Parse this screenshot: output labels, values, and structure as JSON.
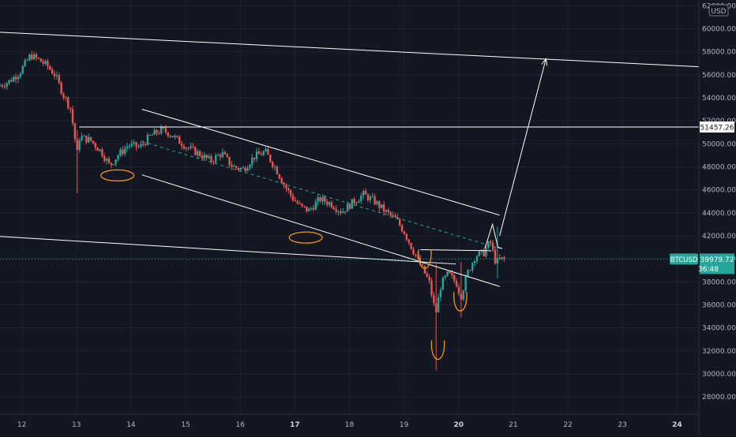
{
  "chart_data": {
    "type": "candlestick",
    "symbol": "BTCUSD",
    "currency": "USD",
    "colors": {
      "background": "#131722",
      "up": "#26a69a",
      "down": "#ef5350",
      "drawing": "#ffffff",
      "highlight": "#f7931a",
      "badge": "#26a69a",
      "grid": "#1e222d"
    },
    "y_axis": {
      "range": [
        26500,
        62500
      ],
      "ticks": [
        "62000.00",
        "60000.00",
        "58000.00",
        "56000.00",
        "54000.00",
        "52000.00",
        "50000.00",
        "48000.00",
        "46000.00",
        "44000.00",
        "42000.00",
        "40000.00",
        "38000.00",
        "36000.00",
        "34000.00",
        "32000.00",
        "30000.00",
        "28000.00"
      ],
      "tick_values": [
        62000,
        60000,
        58000,
        56000,
        54000,
        52000,
        50000,
        48000,
        46000,
        44000,
        42000,
        40000,
        38000,
        36000,
        34000,
        32000,
        30000,
        28000
      ]
    },
    "x_axis": {
      "range": [
        11.6,
        24.4
      ],
      "tick_labels": [
        "12",
        "13",
        "14",
        "15",
        "16",
        "17",
        "18",
        "19",
        "20",
        "21",
        "22",
        "23",
        "24"
      ],
      "tick_values": [
        12,
        13,
        14,
        15,
        16,
        17,
        18,
        19,
        20,
        21,
        22,
        23,
        24
      ],
      "bold_labels": [
        "17",
        "20",
        "24"
      ]
    },
    "price_levels": [
      {
        "label": "51457.26",
        "value": 51457.26,
        "style": "white"
      }
    ],
    "last_price": {
      "label": "BTCUSD",
      "value_label": "39979.72",
      "countdown": "36:48",
      "value": 39979.72
    },
    "price_path": [
      [
        11.6,
        55000
      ],
      [
        11.8,
        55400
      ],
      [
        12.0,
        56200
      ],
      [
        12.2,
        57700
      ],
      [
        12.35,
        57300
      ],
      [
        12.5,
        56800
      ],
      [
        12.65,
        56000
      ],
      [
        12.8,
        54300
      ],
      [
        12.93,
        53100
      ],
      [
        13.0,
        51000
      ],
      [
        13.05,
        49000
      ],
      [
        13.1,
        50600
      ],
      [
        13.3,
        50300
      ],
      [
        13.5,
        49300
      ],
      [
        13.65,
        48100
      ],
      [
        13.8,
        49000
      ],
      [
        14.0,
        49900
      ],
      [
        14.2,
        49700
      ],
      [
        14.4,
        50700
      ],
      [
        14.6,
        51200
      ],
      [
        14.75,
        50900
      ],
      [
        14.9,
        50300
      ],
      [
        15.1,
        49600
      ],
      [
        15.3,
        49100
      ],
      [
        15.5,
        48500
      ],
      [
        15.7,
        49200
      ],
      [
        15.9,
        48000
      ],
      [
        16.1,
        47800
      ],
      [
        16.3,
        48900
      ],
      [
        16.5,
        49300
      ],
      [
        16.7,
        47800
      ],
      [
        16.85,
        46400
      ],
      [
        17.0,
        45300
      ],
      [
        17.15,
        44500
      ],
      [
        17.3,
        44200
      ],
      [
        17.5,
        45200
      ],
      [
        17.7,
        44800
      ],
      [
        17.9,
        44100
      ],
      [
        18.1,
        44900
      ],
      [
        18.3,
        45600
      ],
      [
        18.5,
        45000
      ],
      [
        18.7,
        44100
      ],
      [
        18.9,
        43400
      ],
      [
        19.05,
        42300
      ],
      [
        19.2,
        40800
      ],
      [
        19.35,
        39400
      ],
      [
        19.5,
        38000
      ],
      [
        19.62,
        35200
      ],
      [
        19.72,
        37800
      ],
      [
        19.85,
        38700
      ],
      [
        20.0,
        37900
      ],
      [
        20.08,
        36700
      ],
      [
        20.2,
        38700
      ],
      [
        20.35,
        40300
      ],
      [
        20.5,
        40500
      ],
      [
        20.62,
        41500
      ],
      [
        20.72,
        39700
      ],
      [
        20.85,
        40000
      ]
    ],
    "wicks": [
      [
        13.0,
        45700,
        51200
      ],
      [
        19.6,
        30300,
        39500
      ],
      [
        20.05,
        34900,
        39700
      ],
      [
        20.7,
        38300,
        42800
      ]
    ],
    "annotations": {
      "trend_lines": [
        {
          "from": [
            11.6,
            59700
          ],
          "to": [
            24.4,
            56700
          ]
        },
        {
          "from": [
            11.6,
            41950
          ],
          "to": [
            19.95,
            39550
          ]
        },
        {
          "from": [
            14.2,
            53000
          ],
          "to": [
            20.75,
            43800
          ]
        },
        {
          "from": [
            14.2,
            47300
          ],
          "to": [
            20.75,
            37600
          ]
        },
        {
          "from": [
            13.05,
            51457.26
          ],
          "to": [
            24.4,
            51457.26
          ]
        },
        {
          "from": [
            19.3,
            40800
          ],
          "to": [
            20.6,
            40700
          ]
        }
      ],
      "dashed_midline": {
        "from": [
          14.2,
          50200
        ],
        "to": [
          20.75,
          40900
        ]
      },
      "target_arrow": {
        "from": [
          20.75,
          42000
        ],
        "to": [
          21.6,
          57400
        ]
      },
      "wedge": [
        [
          20.48,
          40900
        ],
        [
          20.62,
          43000
        ],
        [
          20.72,
          41000
        ],
        [
          20.8,
          40900
        ]
      ],
      "highlight_ellipses": [
        [
          13.75,
          47250
        ],
        [
          17.2,
          41850
        ]
      ],
      "highlight_cups": [
        [
          19.38,
          39300
        ],
        [
          19.62,
          31400
        ],
        [
          20.03,
          35600
        ]
      ]
    }
  }
}
